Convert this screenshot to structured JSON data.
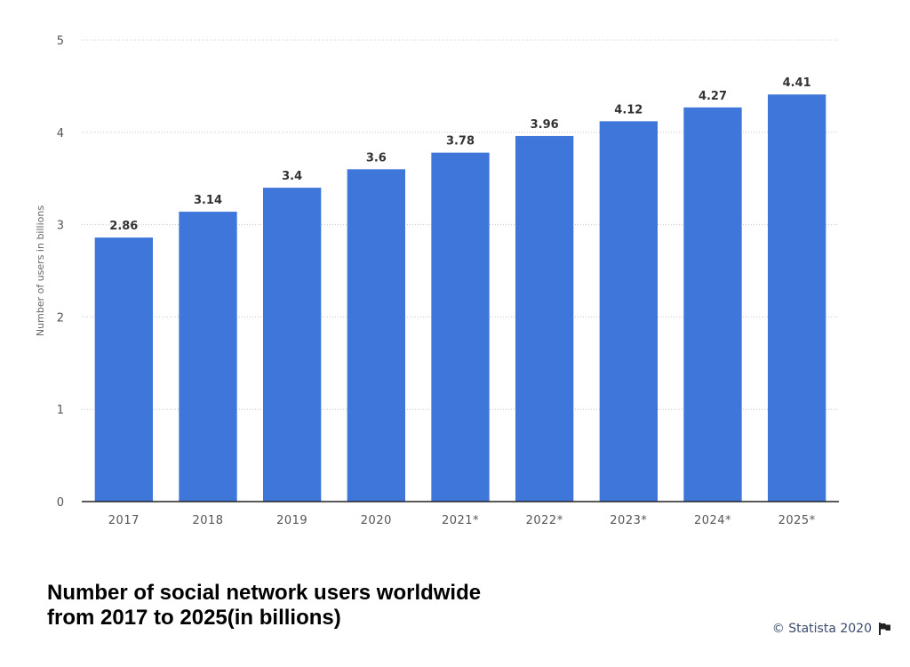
{
  "chart_data": {
    "type": "bar",
    "title": "Number of social network users worldwide from 2017 to 2025(in billions)",
    "ylabel": "Number of users in billions",
    "xlabel": "",
    "categories": [
      "2017",
      "2018",
      "2019",
      "2020",
      "2021*",
      "2022*",
      "2023*",
      "2024*",
      "2025*"
    ],
    "values": [
      2.86,
      3.14,
      3.4,
      3.6,
      3.78,
      3.96,
      4.12,
      4.27,
      4.41
    ],
    "value_labels": [
      "2.86",
      "3.14",
      "3.4",
      "3.6",
      "3.78",
      "3.96",
      "4.12",
      "4.27",
      "4.41"
    ],
    "ylim": [
      0,
      5
    ],
    "yticks": [
      "0",
      "1",
      "2",
      "3",
      "4",
      "5"
    ],
    "grid": true,
    "bar_color": "#3f76d9"
  },
  "title_line1": "Number of social network users worldwide",
  "title_line2": "from 2017 to 2025(in billions)",
  "credit": "© Statista 2020",
  "credit_icon": "flag-icon"
}
